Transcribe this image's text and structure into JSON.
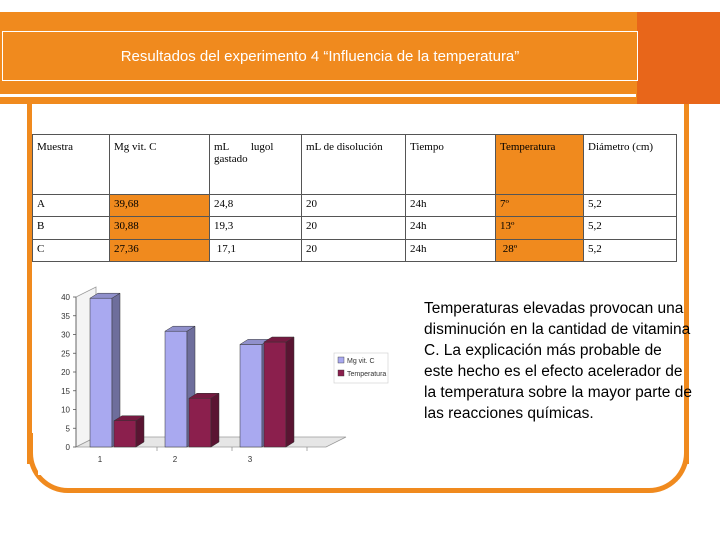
{
  "slide": {
    "title": "Resultados del experimento 4 “Influencia de la temperatura”",
    "description": "Temperaturas elevadas provocan una disminución en la cantidad de vitamina C. La explicación más probable de este hecho es el efecto acelerador de la temperatura sobre la mayor parte de las reacciones químicas."
  },
  "table": {
    "headers": [
      "Muestra",
      "Mg vit. C",
      "mL        lugol gastado",
      "mL de disolución",
      "Tiempo",
      "Temperatura",
      "Diámetro (cm)"
    ],
    "rows": [
      [
        "A",
        "39,68",
        "24,8",
        "20",
        "24h",
        "7º",
        "5,2"
      ],
      [
        "B",
        "30,88",
        "19,3",
        "20",
        "24h",
        "13º",
        "5,2"
      ],
      [
        "C",
        "27,36",
        " 17,1",
        "20",
        "24h",
        " 28º",
        "5,2"
      ]
    ]
  },
  "colors": {
    "accent": "#f08a1e",
    "bar_vitc": "#a9a9f0",
    "bar_temp": "#8b1f4d"
  },
  "chart_data": {
    "type": "bar",
    "style": "3d-clustered",
    "categories": [
      "1",
      "2",
      "3"
    ],
    "series": [
      {
        "name": "Mg vit. C",
        "values": [
          39.68,
          30.88,
          27.36
        ]
      },
      {
        "name": "Temperatura",
        "values": [
          7,
          13,
          28
        ]
      }
    ],
    "y_ticks": [
      "0",
      "5",
      "10",
      "15",
      "20",
      "25",
      "30",
      "35",
      "40"
    ],
    "ylim": [
      0,
      40
    ],
    "legend": "right",
    "grid": false
  }
}
